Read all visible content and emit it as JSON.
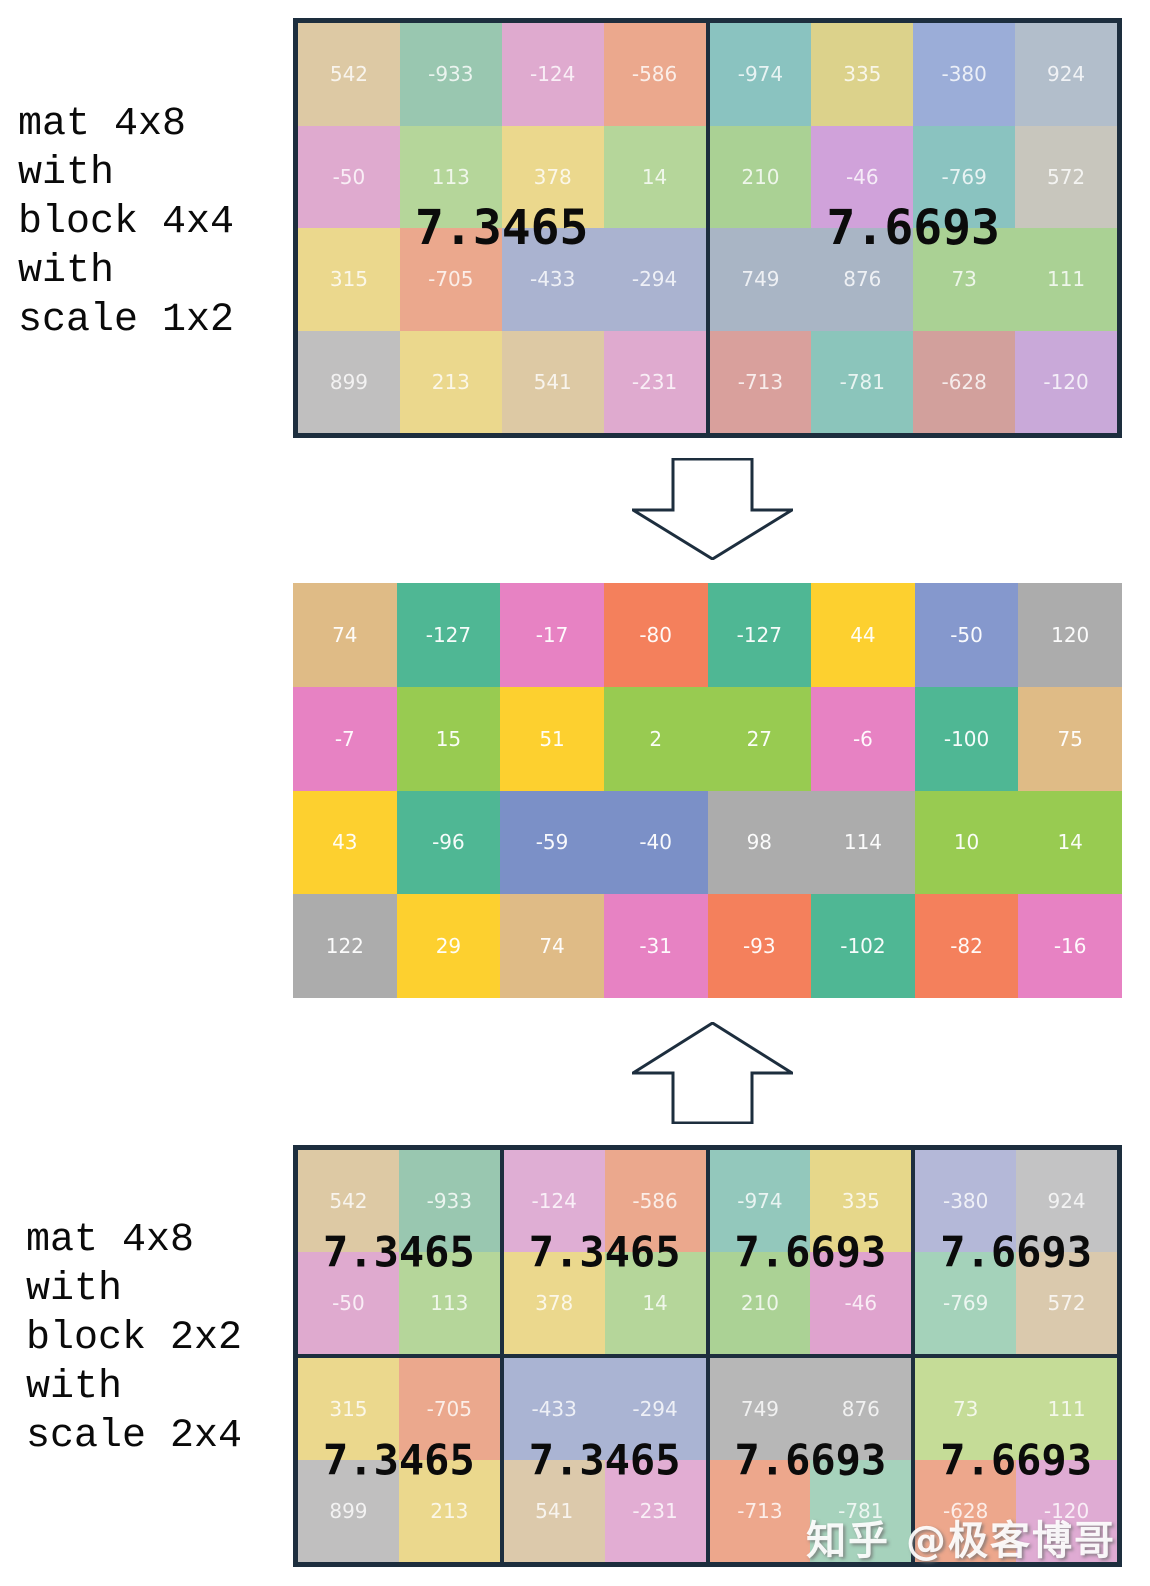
{
  "captions": {
    "top": [
      "mat 4x8",
      "with",
      "block 4x4",
      "with",
      "scale 1x2"
    ],
    "bottom": [
      "mat 4x8",
      "with",
      "block 2x2",
      "with",
      "scale 2x4"
    ]
  },
  "colors": {
    "background": "#ffffff",
    "border": "#1d2e3e",
    "caption_text": "#0a0a0a",
    "scale_text": "#0b0b0b",
    "cell_text_pastel": "rgba(255,255,255,0.8)",
    "cell_text_bright": "rgba(255,255,255,0.95)"
  },
  "top_matrix": {
    "scales": [
      "7.3465",
      "7.6693"
    ],
    "rows": [
      [
        {
          "v": "542",
          "c": "#ddc9a4"
        },
        {
          "v": "-933",
          "c": "#99c7b0"
        },
        {
          "v": "-124",
          "c": "#dfaacf"
        },
        {
          "v": "-586",
          "c": "#eba88d"
        },
        {
          "v": "-974",
          "c": "#8ac3c0"
        },
        {
          "v": "335",
          "c": "#dcd28b"
        },
        {
          "v": "-380",
          "c": "#9badd8"
        },
        {
          "v": "924",
          "c": "#b2becb"
        }
      ],
      [
        {
          "v": "-50",
          "c": "#dfaacf"
        },
        {
          "v": "113",
          "c": "#b5d69a"
        },
        {
          "v": "378",
          "c": "#ebd88d"
        },
        {
          "v": "14",
          "c": "#b5d69a"
        },
        {
          "v": "210",
          "c": "#aad194"
        },
        {
          "v": "-46",
          "c": "#d0a2da"
        },
        {
          "v": "-769",
          "c": "#8ac3c0"
        },
        {
          "v": "572",
          "c": "#c8c6bd"
        }
      ],
      [
        {
          "v": "315",
          "c": "#ebd88d"
        },
        {
          "v": "-705",
          "c": "#eba88d"
        },
        {
          "v": "-433",
          "c": "#aab3d0"
        },
        {
          "v": "-294",
          "c": "#aab3d0"
        },
        {
          "v": "749",
          "c": "#a9b5c5"
        },
        {
          "v": "876",
          "c": "#a9b5c5"
        },
        {
          "v": "73",
          "c": "#aad194"
        },
        {
          "v": "111",
          "c": "#aad194"
        }
      ],
      [
        {
          "v": "899",
          "c": "#c0bfbf"
        },
        {
          "v": "213",
          "c": "#ebd88d"
        },
        {
          "v": "541",
          "c": "#ddc9a4"
        },
        {
          "v": "-231",
          "c": "#dfaacf"
        },
        {
          "v": "-713",
          "c": "#d9a09c"
        },
        {
          "v": "-781",
          "c": "#8bc5bb"
        },
        {
          "v": "-628",
          "c": "#d2a09c"
        },
        {
          "v": "-120",
          "c": "#c9a9d9"
        }
      ]
    ]
  },
  "middle_matrix": {
    "rows": [
      [
        {
          "v": "74",
          "c": "#dfbb86"
        },
        {
          "v": "-127",
          "c": "#4fb794"
        },
        {
          "v": "-17",
          "c": "#e782c3"
        },
        {
          "v": "-80",
          "c": "#f4805c"
        },
        {
          "v": "-127",
          "c": "#4fb794"
        },
        {
          "v": "44",
          "c": "#fdd02f"
        },
        {
          "v": "-50",
          "c": "#8598cd"
        },
        {
          "v": "120",
          "c": "#acacac"
        }
      ],
      [
        {
          "v": "-7",
          "c": "#e782c3"
        },
        {
          "v": "15",
          "c": "#98cb51"
        },
        {
          "v": "51",
          "c": "#fdd02f"
        },
        {
          "v": "2",
          "c": "#98cb51"
        },
        {
          "v": "27",
          "c": "#98cb51"
        },
        {
          "v": "-6",
          "c": "#e782c3"
        },
        {
          "v": "-100",
          "c": "#4fb794"
        },
        {
          "v": "75",
          "c": "#dfbb86"
        }
      ],
      [
        {
          "v": "43",
          "c": "#fdd02f"
        },
        {
          "v": "-96",
          "c": "#4fb794"
        },
        {
          "v": "-59",
          "c": "#7b90c7"
        },
        {
          "v": "-40",
          "c": "#7b90c7"
        },
        {
          "v": "98",
          "c": "#acacac"
        },
        {
          "v": "114",
          "c": "#acacac"
        },
        {
          "v": "10",
          "c": "#98cb51"
        },
        {
          "v": "14",
          "c": "#98cb51"
        }
      ],
      [
        {
          "v": "122",
          "c": "#acacac"
        },
        {
          "v": "29",
          "c": "#fdd02f"
        },
        {
          "v": "74",
          "c": "#dfbb86"
        },
        {
          "v": "-31",
          "c": "#e782c3"
        },
        {
          "v": "-93",
          "c": "#f4805c"
        },
        {
          "v": "-102",
          "c": "#4fb794"
        },
        {
          "v": "-82",
          "c": "#f4805c"
        },
        {
          "v": "-16",
          "c": "#e782c3"
        }
      ]
    ]
  },
  "bottom_matrix": {
    "blocks": [
      {
        "scale": "7.3465",
        "cells": [
          {
            "v": "542",
            "c": "#ddc9a4"
          },
          {
            "v": "-933",
            "c": "#99c7b0"
          },
          {
            "v": "-50",
            "c": "#dfaacf"
          },
          {
            "v": "113",
            "c": "#b5d69a"
          }
        ]
      },
      {
        "scale": "7.3465",
        "cells": [
          {
            "v": "-124",
            "c": "#dfaed4"
          },
          {
            "v": "-586",
            "c": "#eba88d"
          },
          {
            "v": "378",
            "c": "#ebd88d"
          },
          {
            "v": "14",
            "c": "#b5d69a"
          }
        ]
      },
      {
        "scale": "7.6693",
        "cells": [
          {
            "v": "-974",
            "c": "#93c8bc"
          },
          {
            "v": "335",
            "c": "#e6d78a"
          },
          {
            "v": "210",
            "c": "#abd295"
          },
          {
            "v": "-46",
            "c": "#dfa3ce"
          }
        ]
      },
      {
        "scale": "7.6693",
        "cells": [
          {
            "v": "-380",
            "c": "#b4b8d8"
          },
          {
            "v": "924",
            "c": "#c3c3c4"
          },
          {
            "v": "-769",
            "c": "#a4d2ba"
          },
          {
            "v": "572",
            "c": "#dac9ad"
          }
        ]
      },
      {
        "scale": "7.3465",
        "cells": [
          {
            "v": "315",
            "c": "#ebd88d"
          },
          {
            "v": "-705",
            "c": "#eba88d"
          },
          {
            "v": "899",
            "c": "#c0bfbf"
          },
          {
            "v": "213",
            "c": "#ebd88d"
          }
        ]
      },
      {
        "scale": "7.3465",
        "cells": [
          {
            "v": "-433",
            "c": "#aab4d3"
          },
          {
            "v": "-294",
            "c": "#aab4d3"
          },
          {
            "v": "541",
            "c": "#dcc9ab"
          },
          {
            "v": "-231",
            "c": "#e2add3"
          }
        ]
      },
      {
        "scale": "7.6693",
        "cells": [
          {
            "v": "749",
            "c": "#b7b7b7"
          },
          {
            "v": "876",
            "c": "#b7b7b7"
          },
          {
            "v": "-713",
            "c": "#eda78c"
          },
          {
            "v": "-781",
            "c": "#a6d2bc"
          }
        ]
      },
      {
        "scale": "7.6693",
        "cells": [
          {
            "v": "73",
            "c": "#c5dc97"
          },
          {
            "v": "111",
            "c": "#c5dc97"
          },
          {
            "v": "-628",
            "c": "#eda78c"
          },
          {
            "v": "-120",
            "c": "#dfabd3"
          }
        ]
      }
    ]
  },
  "watermark": "知乎 @极客博哥"
}
